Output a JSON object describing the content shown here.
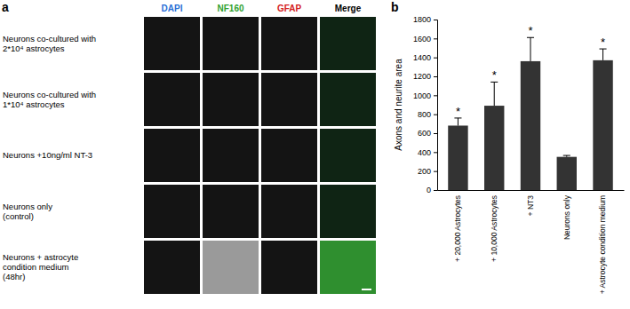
{
  "figure": {
    "panel_a": {
      "label": "a",
      "columns": [
        {
          "name": "DAPI",
          "color": "#2a6fd6"
        },
        {
          "name": "NF160",
          "color": "#2fa12f"
        },
        {
          "name": "GFAP",
          "color": "#d42020"
        },
        {
          "name": "Merge",
          "color": "#000000"
        }
      ],
      "rows": [
        [
          "Neurons co-cultured with",
          "2*10⁴ astrocytes"
        ],
        [
          "Neurons co-cultured with",
          "1*10⁴ astrocytes"
        ],
        [
          "Neurons +10ng/ml NT-3"
        ],
        [
          "Neurons only",
          "(control)"
        ],
        [
          "Neurons + astrocyte",
          "condition medium",
          "(48hr)"
        ]
      ]
    },
    "panel_b_label": "b"
  },
  "chart_data": {
    "type": "bar",
    "y_label": "Axons and neurite area",
    "categories": [
      "+ 20,000 Astrocytes",
      "+ 10,000 Astrocytes",
      "+ NT3",
      "Neurons only",
      "+ Astrocyte condition medium"
    ],
    "values": [
      680,
      890,
      1360,
      350,
      1370
    ],
    "errors": [
      80,
      250,
      250,
      15,
      120
    ],
    "annotations": [
      "*",
      "*",
      "*",
      null,
      "*"
    ],
    "color": "#333333",
    "ylim": [
      0,
      1800
    ],
    "yticks": [
      0,
      200,
      400,
      600,
      800,
      1000,
      1200,
      1400,
      1600,
      1800
    ],
    "grid": false
  }
}
